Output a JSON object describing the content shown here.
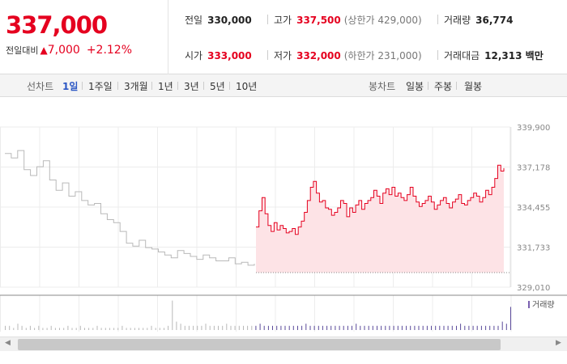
{
  "quote": {
    "price": "337,000",
    "diff_label": "전일대비",
    "diff_arrow": "▲",
    "diff_value": "7,000",
    "diff_pct": "+2.12%",
    "prev_close_label": "전일",
    "prev_close": "330,000",
    "high_label": "고가",
    "high": "337,500",
    "upper_limit": "(상한가 429,000)",
    "volume_label": "거래량",
    "volume": "36,774",
    "open_label": "시가",
    "open": "333,000",
    "low_label": "저가",
    "low": "332,000",
    "lower_limit": "(하한가 231,000)",
    "amount_label": "거래대금",
    "amount": "12,313 백만"
  },
  "tabs": {
    "line_label": "선차트",
    "line_items": [
      "1일",
      "1주일",
      "3개월",
      "1년",
      "3년",
      "5년",
      "10년"
    ],
    "active": "1일",
    "candle_label": "봉차트",
    "candle_items": [
      "일봉",
      "주봉",
      "월봉"
    ]
  },
  "chart_data": {
    "type": "line",
    "y_ticks": [
      "339,900",
      "337,178",
      "334,455",
      "331,733",
      "329,010"
    ],
    "ylim": [
      329010,
      339900
    ],
    "reference": 330000,
    "grid": true,
    "volume_legend": "거래량",
    "series": [
      {
        "values": [
          338100,
          337800,
          338300,
          337000,
          336600,
          337200,
          337600,
          336300,
          335600,
          336100,
          335200,
          335500,
          334900,
          334600,
          334700,
          334000,
          333600,
          333400,
          332800,
          332000,
          331800,
          332200,
          331700,
          331600,
          331400,
          331200,
          331000,
          331500,
          331300,
          331100,
          330900,
          331200,
          331000,
          330800,
          330800,
          331000,
          330600,
          330700,
          330500,
          330600
        ]
      },
      {
        "values": [
          333100,
          334200,
          335100,
          334000,
          333200,
          332800,
          333400,
          332900,
          333200,
          333000,
          332700,
          332800,
          333000,
          332600,
          333100,
          333500,
          334100,
          334900,
          335800,
          336200,
          335400,
          334800,
          334900,
          334400,
          334300,
          333900,
          334100,
          334400,
          334900,
          334700,
          333800,
          334400,
          334100,
          334600,
          334900,
          334300,
          334700,
          334900,
          335100,
          335600,
          335200,
          334700,
          335400,
          335700,
          335300,
          335800,
          335200,
          335400,
          335100,
          334900,
          335300,
          335800,
          335200,
          334800,
          334500,
          334700,
          334900,
          335200,
          334800,
          334300,
          334600,
          334900,
          335100,
          334700,
          334400,
          334800,
          335000,
          335300,
          334700,
          334600,
          334900,
          335100,
          335400,
          335200,
          334800,
          335100,
          335600,
          335300,
          335800,
          336400,
          337300,
          336900,
          337100
        ]
      }
    ],
    "volume_values": [
      2,
      2,
      1,
      3,
      2,
      1,
      2,
      1,
      2,
      1,
      1,
      2,
      1,
      1,
      1,
      2,
      1,
      1,
      2,
      1,
      1,
      1,
      2,
      1,
      1,
      1,
      1,
      1,
      2,
      1,
      1,
      1,
      1,
      1,
      1,
      2,
      1,
      1,
      1,
      2,
      14,
      4,
      3,
      2,
      2,
      2,
      2,
      2,
      3,
      2,
      2,
      2,
      2,
      3,
      2,
      2,
      2,
      2,
      2,
      2,
      2,
      3,
      2,
      2,
      2,
      2,
      2,
      2,
      2,
      2,
      2,
      2,
      3,
      2,
      2,
      2,
      2,
      2,
      2,
      2,
      2,
      2,
      2,
      2,
      3,
      2,
      2,
      2,
      2,
      2,
      2,
      2,
      2,
      2,
      2,
      2,
      2,
      2,
      2,
      2,
      2,
      2,
      2,
      2,
      2,
      2,
      2,
      2,
      2,
      3,
      2,
      2,
      2,
      2,
      2,
      2,
      2,
      2,
      2,
      4,
      3,
      11
    ]
  }
}
